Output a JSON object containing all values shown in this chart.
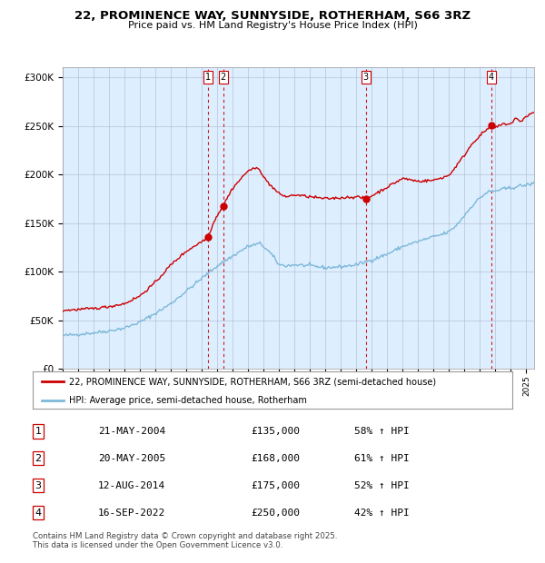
{
  "title": "22, PROMINENCE WAY, SUNNYSIDE, ROTHERHAM, S66 3RZ",
  "subtitle": "Price paid vs. HM Land Registry's House Price Index (HPI)",
  "legend_line1": "22, PROMINENCE WAY, SUNNYSIDE, ROTHERHAM, S66 3RZ (semi-detached house)",
  "legend_line2": "HPI: Average price, semi-detached house, Rotherham",
  "footer": "Contains HM Land Registry data © Crown copyright and database right 2025.\nThis data is licensed under the Open Government Licence v3.0.",
  "sales": [
    {
      "label": "1",
      "date_x": 2004.38,
      "price": 135000,
      "display": "21-MAY-2004",
      "pct": "58% ↑ HPI"
    },
    {
      "label": "2",
      "date_x": 2005.38,
      "price": 168000,
      "display": "20-MAY-2005",
      "pct": "61% ↑ HPI"
    },
    {
      "label": "3",
      "date_x": 2014.62,
      "price": 175000,
      "display": "12-AUG-2014",
      "pct": "52% ↑ HPI"
    },
    {
      "label": "4",
      "date_x": 2022.71,
      "price": 250000,
      "display": "16-SEP-2022",
      "pct": "42% ↑ HPI"
    }
  ],
  "hpi_color": "#7db8d8",
  "price_color": "#cc0000",
  "dashed_color": "#cc0000",
  "bg_color": "#ddeeff",
  "plot_bg": "#ffffff",
  "ylim": [
    0,
    310000
  ],
  "yticks": [
    0,
    50000,
    100000,
    150000,
    200000,
    250000,
    300000
  ],
  "xlim_start": 1995,
  "xlim_end": 2025.5
}
